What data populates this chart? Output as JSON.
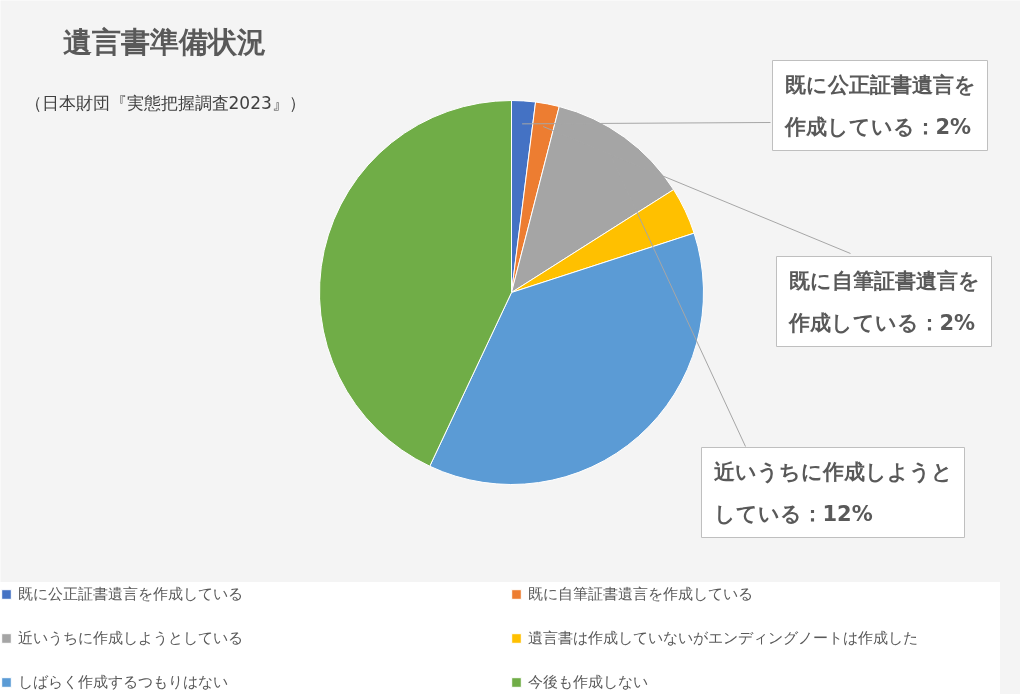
{
  "chart_data": {
    "type": "pie",
    "title": "遺言書準備状況",
    "subtitle": "（日本財団『実態把握調査2023』）",
    "categories": [
      "既に公正証書遺言を作成している",
      "既に自筆証書遺言を作成している",
      "近いうちに作成しようとしている",
      "遺言書は作成していないがエンディングノートは作成した",
      "しばらく作成するつもりはない",
      "今後も作成しない"
    ],
    "values": [
      2,
      2,
      12,
      4,
      37,
      43
    ],
    "colors": [
      "#4472c4",
      "#ed7d31",
      "#a5a5a5",
      "#ffc000",
      "#5b9bd5",
      "#70ad47"
    ],
    "value_labels": [
      "既に公正証書遺言を作成している：2%",
      "既に自筆証書遺言を作成している：2%",
      "近いうちに作成しようとしている：12%",
      null,
      null,
      null
    ],
    "legend": "bottom"
  }
}
